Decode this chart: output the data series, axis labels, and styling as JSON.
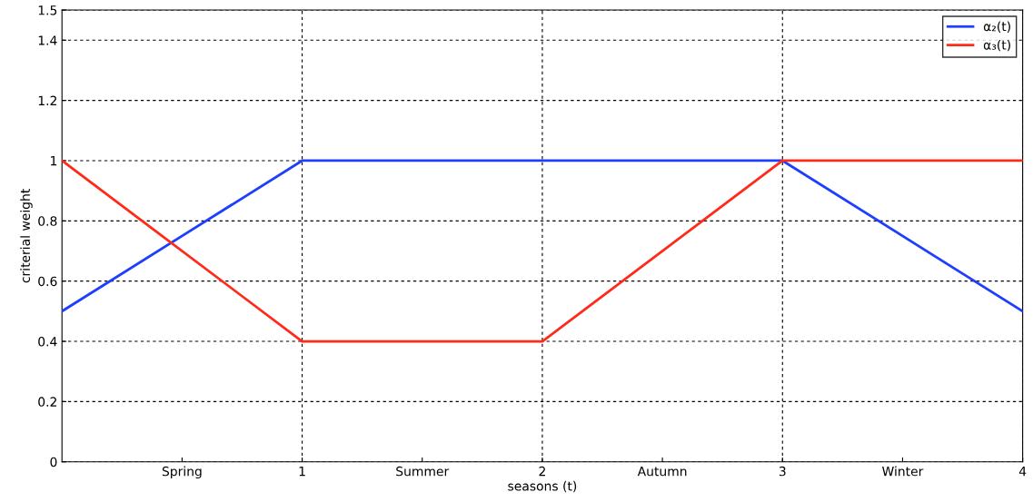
{
  "chart_data": {
    "type": "line",
    "xlabel": "seasons (t)",
    "ylabel": "criterial weight",
    "x": [
      0,
      1,
      2,
      3,
      4
    ],
    "series": [
      {
        "name": "α₂(t)",
        "color": "#1f3fff",
        "values": [
          0.5,
          1,
          1,
          1,
          0.5
        ]
      },
      {
        "name": "α₃(t)",
        "color": "#ff2a1a",
        "values": [
          1,
          0.4,
          0.4,
          1,
          1
        ]
      }
    ],
    "xlim": [
      0,
      4
    ],
    "ylim": [
      0,
      1.5
    ],
    "xticks": [
      {
        "value": 0.5,
        "label": "Spring"
      },
      1,
      {
        "value": 1.5,
        "label": "Summer"
      },
      2,
      {
        "value": 2.5,
        "label": "Autumn"
      },
      3,
      {
        "value": 3.5,
        "label": "Winter"
      },
      4
    ],
    "yticks": [
      0,
      0.2,
      0.4,
      0.6,
      0.8,
      1,
      1.2,
      1.4,
      1.5
    ],
    "grid": true,
    "legend": "top right",
    "line_style": "solid",
    "marker": "none"
  }
}
